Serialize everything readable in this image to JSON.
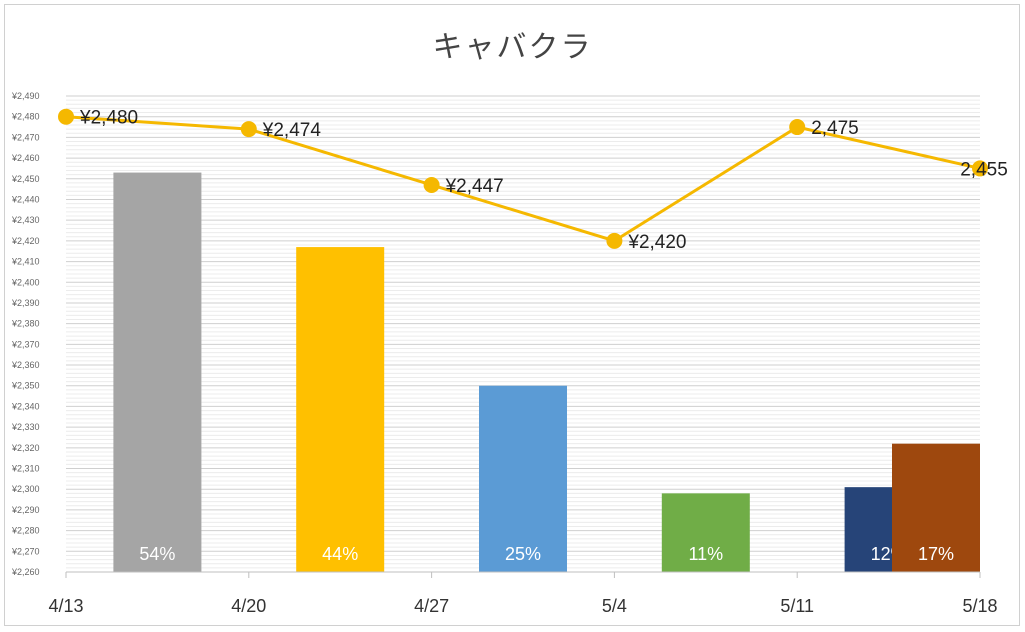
{
  "chart_data": {
    "type": "bar+line",
    "title": "キャバクラ",
    "categories": [
      "4/13",
      "4/20",
      "4/27",
      "5/4",
      "5/11",
      "5/18"
    ],
    "ylim": [
      2260,
      2490
    ],
    "ytick_step": 10,
    "yticks": [
      "¥2,260",
      "¥2,270",
      "¥2,280",
      "¥2,290",
      "¥2,300",
      "¥2,310",
      "¥2,320",
      "¥2,330",
      "¥2,340",
      "¥2,350",
      "¥2,360",
      "¥2,370",
      "¥2,380",
      "¥2,390",
      "¥2,400",
      "¥2,410",
      "¥2,420",
      "¥2,430",
      "¥2,440",
      "¥2,450",
      "¥2,460",
      "¥2,470",
      "¥2,480",
      "¥2,490"
    ],
    "grid": true,
    "bars": {
      "values": [
        2453,
        2417,
        2350,
        2298,
        2301,
        2322
      ],
      "labels": [
        "54%",
        "44%",
        "25%",
        "11%",
        "12%",
        "17%"
      ],
      "colors": [
        "#a5a5a5",
        "#ffc000",
        "#5b9bd5",
        "#70ad47",
        "#264478",
        "#9e480e"
      ]
    },
    "line": {
      "values": [
        2480,
        2474,
        2447,
        2420,
        2475,
        2455
      ],
      "labels": [
        "¥2,480",
        "¥2,474",
        "¥2,447",
        "¥2,420",
        "2,475",
        "2,455"
      ],
      "color": "#f5b800"
    }
  }
}
